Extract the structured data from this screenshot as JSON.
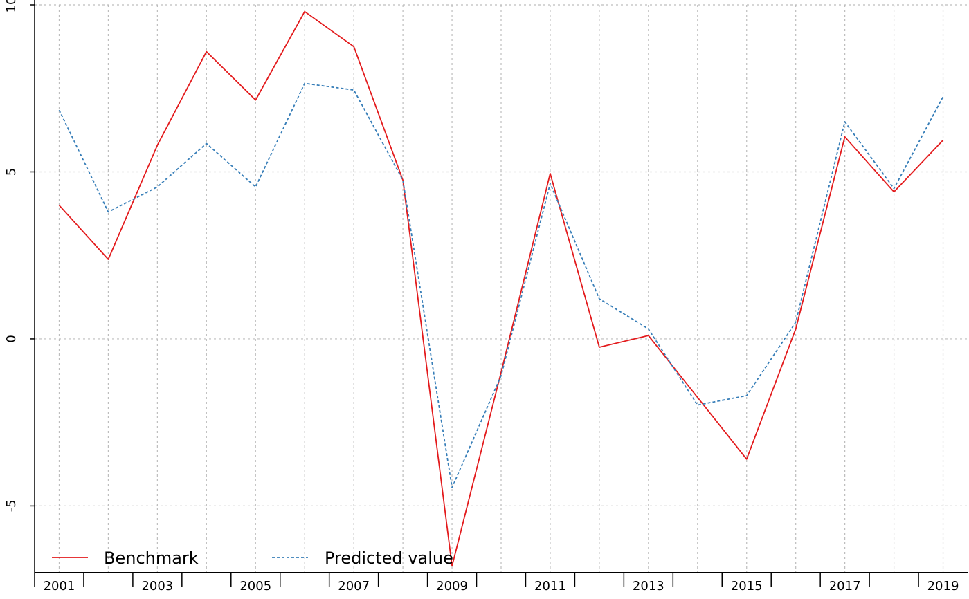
{
  "chart_data": {
    "type": "line",
    "title": "",
    "xlabel": "",
    "ylabel": "",
    "x": [
      2001,
      2002,
      2003,
      2004,
      2005,
      2006,
      2007,
      2008,
      2009,
      2010,
      2011,
      2012,
      2013,
      2014,
      2015,
      2016,
      2017,
      2018,
      2019
    ],
    "xlim": [
      2000.5,
      2019.5
    ],
    "ylim": [
      -7,
      10
    ],
    "x_tick_labels": [
      "2001",
      "2003",
      "2005",
      "2007",
      "2009",
      "2011",
      "2013",
      "2015",
      "2017",
      "2019"
    ],
    "y_tick_labels": [
      "-5",
      "0",
      "5",
      "10"
    ],
    "grid": true,
    "legend_position": "bottom-left",
    "series": [
      {
        "name": "Benchmark",
        "color": "#e31a1c",
        "style": "solid",
        "values": [
          4.0,
          2.38,
          5.8,
          8.6,
          7.15,
          9.8,
          8.75,
          4.75,
          -6.8,
          -1.0,
          4.95,
          -0.25,
          0.1,
          -1.75,
          -3.6,
          0.3,
          6.05,
          4.4,
          5.95
        ]
      },
      {
        "name": "Predicted value",
        "color": "#377eb8",
        "style": "dashed",
        "values": [
          6.85,
          3.8,
          4.55,
          5.85,
          4.55,
          7.65,
          7.45,
          4.75,
          -4.45,
          -1.1,
          4.65,
          1.2,
          0.3,
          -1.98,
          -1.7,
          0.5,
          6.5,
          4.5,
          7.25
        ]
      }
    ]
  }
}
